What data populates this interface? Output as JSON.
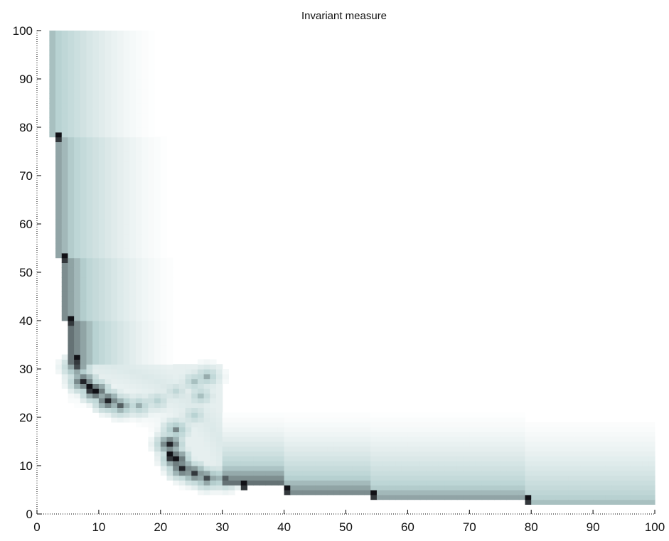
{
  "chart_data": {
    "type": "heatmap",
    "title": "Invariant measure",
    "xlabel": "",
    "ylabel": "",
    "xlim": [
      0,
      100
    ],
    "ylim": [
      0,
      100
    ],
    "x_ticks": [
      0,
      10,
      20,
      30,
      40,
      50,
      60,
      70,
      80,
      90,
      100
    ],
    "y_ticks": [
      0,
      10,
      20,
      30,
      40,
      50,
      60,
      70,
      80,
      90,
      100
    ],
    "x_tick_labels": [
      "0",
      "10",
      "20",
      "30",
      "40",
      "50",
      "60",
      "70",
      "80",
      "90",
      "100"
    ],
    "y_tick_labels": [
      "0",
      "10",
      "20",
      "30",
      "40",
      "50",
      "60",
      "70",
      "80",
      "90",
      "100"
    ],
    "grid": false,
    "colormap": "bone (reversed: white = low, dark = high)",
    "colors": {
      "low": "#ffffff",
      "mid": "#b9d3d3",
      "high": "#111116"
    },
    "description_of_density": "L-shaped ridge: vertical band near x=2-10 for y=20-100, curving through (10-25, 22-28), small loop near x=20-30, y=5-30, then horizontal band near y=2-10 for x=22-100",
    "segments": [
      {
        "name": "vertical-top",
        "x_start": 2,
        "y_from": 78,
        "y_to": 100,
        "width": 18,
        "darkness": 0.55,
        "orientation": "vertical"
      },
      {
        "name": "vertical-upper",
        "x_start": 3,
        "y_from": 53,
        "y_to": 78,
        "width": 19,
        "darkness": 0.62,
        "orientation": "vertical"
      },
      {
        "name": "vertical-mid",
        "x_start": 4,
        "y_from": 40,
        "y_to": 53,
        "width": 19,
        "darkness": 0.68,
        "orientation": "vertical"
      },
      {
        "name": "vertical-low",
        "x_start": 5,
        "y_from": 31,
        "y_to": 40,
        "width": 18,
        "darkness": 0.75,
        "orientation": "vertical"
      },
      {
        "name": "horizontal-left",
        "y_start": 6,
        "x_from": 30,
        "x_to": 40,
        "width": 16,
        "darkness": 0.75,
        "orientation": "horizontal"
      },
      {
        "name": "horizontal-mid",
        "y_start": 4,
        "x_from": 40,
        "x_to": 54,
        "width": 18,
        "darkness": 0.68,
        "orientation": "horizontal"
      },
      {
        "name": "horizontal-right",
        "y_start": 3,
        "x_from": 54,
        "x_to": 79,
        "width": 19,
        "darkness": 0.62,
        "orientation": "horizontal"
      },
      {
        "name": "horizontal-end",
        "y_start": 2,
        "x_from": 79,
        "x_to": 100,
        "width": 19,
        "darkness": 0.55,
        "orientation": "horizontal"
      }
    ],
    "curve_points": [
      {
        "x": 6,
        "y": 30,
        "v": 0.85
      },
      {
        "x": 7,
        "y": 27,
        "v": 0.95
      },
      {
        "x": 9,
        "y": 25,
        "v": 1.0
      },
      {
        "x": 11,
        "y": 23,
        "v": 0.95
      },
      {
        "x": 13,
        "y": 22,
        "v": 0.8
      },
      {
        "x": 16,
        "y": 22,
        "v": 0.6
      },
      {
        "x": 19,
        "y": 23,
        "v": 0.5
      },
      {
        "x": 22,
        "y": 25,
        "v": 0.45
      },
      {
        "x": 25,
        "y": 27,
        "v": 0.55
      },
      {
        "x": 27,
        "y": 28,
        "v": 0.6
      },
      {
        "x": 26,
        "y": 24,
        "v": 0.55
      },
      {
        "x": 25,
        "y": 20,
        "v": 0.5
      },
      {
        "x": 22,
        "y": 17,
        "v": 0.7
      },
      {
        "x": 21,
        "y": 14,
        "v": 0.95
      },
      {
        "x": 22,
        "y": 11,
        "v": 1.0
      },
      {
        "x": 23,
        "y": 9,
        "v": 0.95
      },
      {
        "x": 25,
        "y": 8,
        "v": 0.9
      },
      {
        "x": 27,
        "y": 7,
        "v": 0.85
      },
      {
        "x": 30,
        "y": 7,
        "v": 0.8
      }
    ],
    "hotspots": [
      {
        "x": 3,
        "y": 78,
        "v": 1.0
      },
      {
        "x": 4,
        "y": 53,
        "v": 1.0
      },
      {
        "x": 5,
        "y": 40,
        "v": 1.0
      },
      {
        "x": 6,
        "y": 32,
        "v": 1.0
      },
      {
        "x": 33,
        "y": 6,
        "v": 1.0
      },
      {
        "x": 40,
        "y": 5,
        "v": 1.0
      },
      {
        "x": 54,
        "y": 4,
        "v": 1.0
      },
      {
        "x": 79,
        "y": 3,
        "v": 1.0
      },
      {
        "x": 21,
        "y": 12,
        "v": 1.0
      },
      {
        "x": 8,
        "y": 26,
        "v": 1.0
      }
    ],
    "loop_box": {
      "x_from": 22,
      "x_to": 30,
      "y_from": 10,
      "y_to": 31,
      "v": 0.18
    }
  }
}
